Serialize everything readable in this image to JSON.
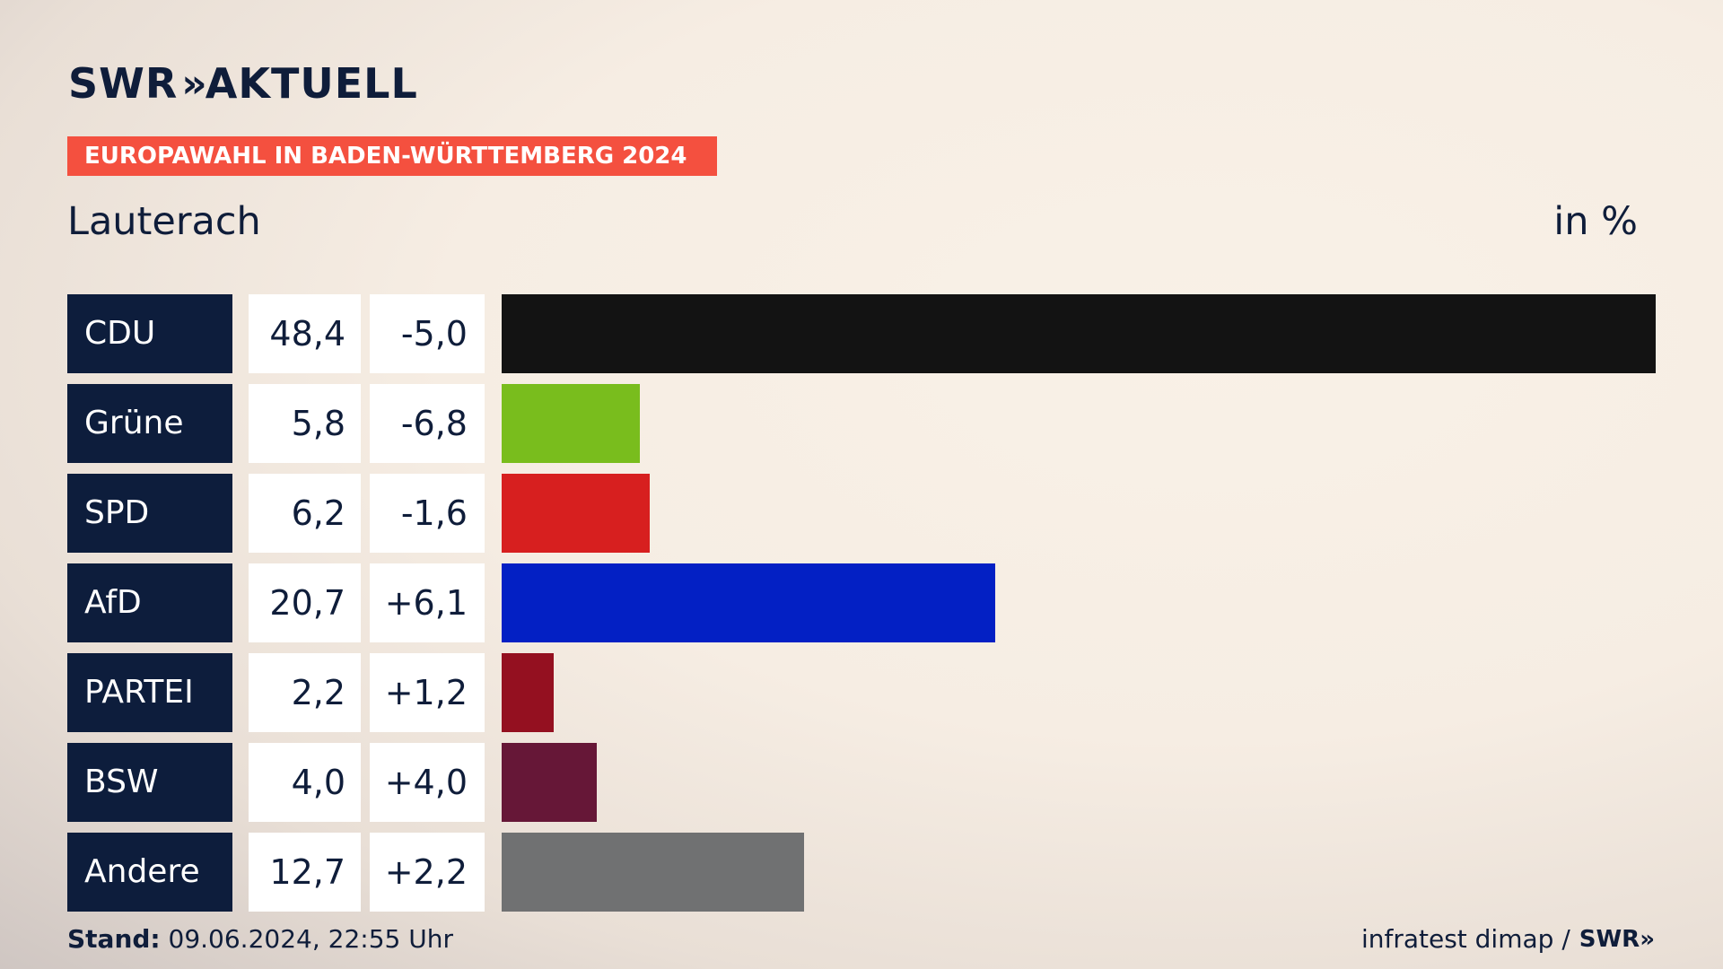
{
  "brand": {
    "name": "SWR",
    "chevrons": "»",
    "product": "AKTUELL"
  },
  "banner": "EUROPAWAHL IN BADEN-WÜRTTEMBERG 2024",
  "region": "Lauterach",
  "unit": "in %",
  "footer": {
    "stand_label": "Stand:",
    "stand_value": " 09.06.2024, 22:55 Uhr",
    "source": "infratest dimap /",
    "source_brand": "SWR»"
  },
  "colors": {
    "accent": "#f4503f",
    "label_bg": "#0d1d3c"
  },
  "chart_data": {
    "type": "bar",
    "orientation": "horizontal",
    "categories": [
      "CDU",
      "Grüne",
      "SPD",
      "AfD",
      "PARTEI",
      "BSW",
      "Andere"
    ],
    "values": [
      48.4,
      5.8,
      6.2,
      20.7,
      2.2,
      4.0,
      12.7
    ],
    "value_labels": [
      "48,4",
      "5,8",
      "6,2",
      "20,7",
      "2,2",
      "4,0",
      "12,7"
    ],
    "diff_labels": [
      "-5,0",
      "-6,8",
      "-1,6",
      "+6,1",
      "+1,2",
      "+4,0",
      "+2,2"
    ],
    "diffs": [
      -5.0,
      -6.8,
      -1.6,
      6.1,
      1.2,
      4.0,
      2.2
    ],
    "bar_colors": [
      "#131313",
      "#79bd1d",
      "#d71f1f",
      "#0320c4",
      "#941020",
      "#661737",
      "#707172"
    ],
    "xlim": [
      0,
      48.4
    ]
  }
}
